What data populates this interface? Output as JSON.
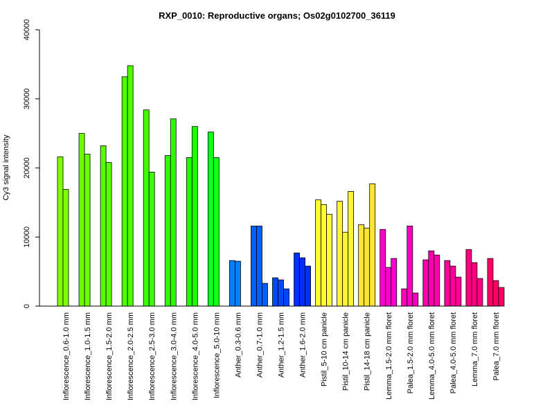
{
  "chart_data": {
    "type": "bar",
    "title": "RXP_0010: Reproductive organs; Os02g0102700_36119",
    "xlabel": "",
    "ylabel": "Cy3 signal intensity",
    "ylim": [
      0,
      40000
    ],
    "yticks": [
      0,
      10000,
      20000,
      30000,
      40000
    ],
    "grid": false,
    "categories": [
      "Inflorescence_0.6-1.0 mm",
      "Inflorescence_1.0-1.5 mm",
      "Inflorescence_1.5-2.0 mm",
      "Inflorescence_2.0-2.5 mm",
      "Inflorescence_2.5-3.0 mm",
      "Inflorescence_3.0-4.0 mm",
      "Inflorescence_4.0-5.0 mm",
      "Inflorescence_5.0-10 mm",
      "Anther_0.3-0.6 mm",
      "Anther_0.7-1.0 mm",
      "Anther_1.2-1.5 mm",
      "Anther_1.6-2.0 mm",
      "Pistil_5-10 cm panicle",
      "Pistil_10-14 cm panicle",
      "Pistil_14-18 cm panicle",
      "Lemma_1.5-2.0 mm floret",
      "Palea_1.5-2.0 mm floret",
      "Lemma_4.0-5.0 mm floret",
      "Palea_4.0-5.0 mm floret",
      "Lemma_7.0 mm floret",
      "Palea_7.0 mm floret"
    ],
    "groups": [
      {
        "color": "#80ff00",
        "values": [
          21600,
          16900
        ]
      },
      {
        "color": "#6cff00",
        "values": [
          25000,
          22000
        ]
      },
      {
        "color": "#5cff00",
        "values": [
          23200,
          20800
        ]
      },
      {
        "color": "#4cff00",
        "values": [
          33200,
          34800
        ]
      },
      {
        "color": "#3dff00",
        "values": [
          28400,
          19400
        ]
      },
      {
        "color": "#2eff00",
        "values": [
          21800,
          27100
        ]
      },
      {
        "color": "#1eff00",
        "values": [
          21500,
          26000
        ]
      },
      {
        "color": "#0fff1a",
        "values": [
          25200,
          21500
        ]
      },
      {
        "color": "#0080ff",
        "values": [
          6600,
          6500
        ]
      },
      {
        "color": "#0060ff",
        "values": [
          11600,
          11600,
          3300
        ]
      },
      {
        "color": "#0048ff",
        "values": [
          4100,
          3800,
          2500
        ]
      },
      {
        "color": "#0030ff",
        "values": [
          7700,
          7000,
          5800
        ]
      },
      {
        "color": "#ffff33",
        "values": [
          15400,
          14700,
          13300
        ]
      },
      {
        "color": "#fff533",
        "values": [
          15200,
          10700,
          16600
        ]
      },
      {
        "color": "#ffe633",
        "values": [
          11800,
          11300,
          17700
        ]
      },
      {
        "color": "#ff00cc",
        "values": [
          11100,
          5600,
          6900
        ]
      },
      {
        "color": "#ff00bb",
        "values": [
          2500,
          11600,
          1900
        ]
      },
      {
        "color": "#ff00aa",
        "values": [
          6700,
          8000,
          7400
        ]
      },
      {
        "color": "#ff0099",
        "values": [
          6600,
          5800,
          4200
        ]
      },
      {
        "color": "#ff0080",
        "values": [
          8200,
          6300,
          4000
        ]
      },
      {
        "color": "#ff0066",
        "values": [
          6900,
          3700,
          2700
        ]
      }
    ]
  }
}
